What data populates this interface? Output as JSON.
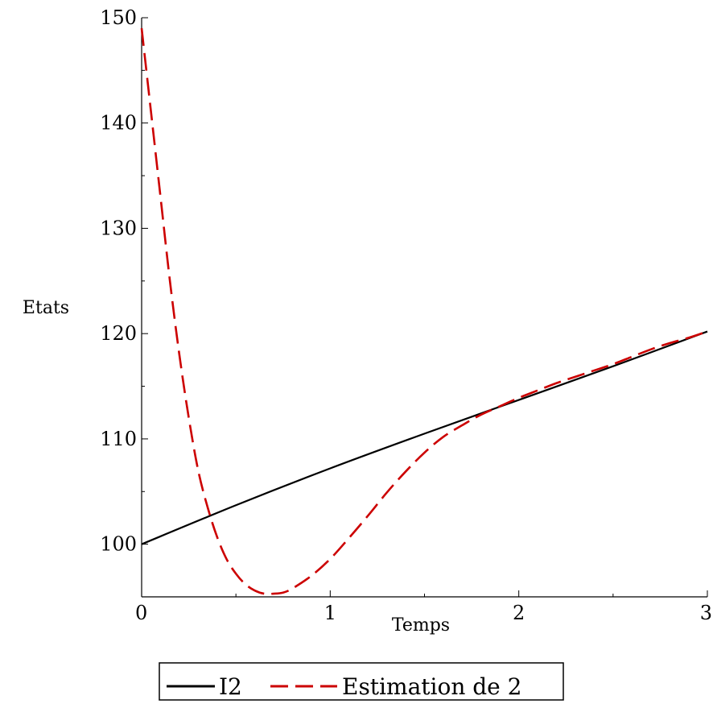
{
  "chart_data": {
    "type": "line",
    "title": "",
    "xlabel": "Temps",
    "ylabel": "Etats",
    "xlim": [
      0,
      3
    ],
    "ylim": [
      95,
      150
    ],
    "x_ticks": [
      "0",
      "1",
      "2",
      "3"
    ],
    "y_ticks": [
      "100",
      "110",
      "120",
      "130",
      "140",
      "150"
    ],
    "grid": false,
    "legend_position": "bottom",
    "series": [
      {
        "name": "I2",
        "color": "#000000",
        "style": "solid",
        "x": [
          0,
          0.5,
          1.0,
          1.5,
          2.0,
          2.5,
          3.0
        ],
        "y": [
          100,
          103.7,
          107.2,
          110.5,
          113.7,
          116.9,
          120.2
        ]
      },
      {
        "name": "Estimation de 2",
        "color": "#cc0000",
        "style": "dashed",
        "x": [
          0,
          0.05,
          0.1,
          0.15,
          0.2,
          0.25,
          0.3,
          0.35,
          0.4,
          0.45,
          0.5,
          0.55,
          0.6,
          0.65,
          0.7,
          0.75,
          0.8,
          0.9,
          1.0,
          1.1,
          1.2,
          1.3,
          1.4,
          1.5,
          1.6,
          1.7,
          1.8,
          1.9,
          2.0,
          2.1,
          2.2,
          2.3,
          2.4,
          2.5,
          2.6,
          2.7,
          2.8,
          2.9,
          3.0
        ],
        "y": [
          149,
          141,
          133,
          125,
          118,
          112,
          107,
          103.5,
          100.7,
          98.6,
          97.2,
          96.2,
          95.6,
          95.3,
          95.3,
          95.4,
          95.8,
          97,
          98.6,
          100.6,
          102.7,
          104.9,
          106.9,
          108.7,
          110.2,
          111.3,
          112.3,
          113.1,
          113.9,
          114.6,
          115.3,
          115.9,
          116.5,
          117.1,
          117.8,
          118.5,
          119.1,
          119.6,
          120.2
        ]
      }
    ]
  }
}
